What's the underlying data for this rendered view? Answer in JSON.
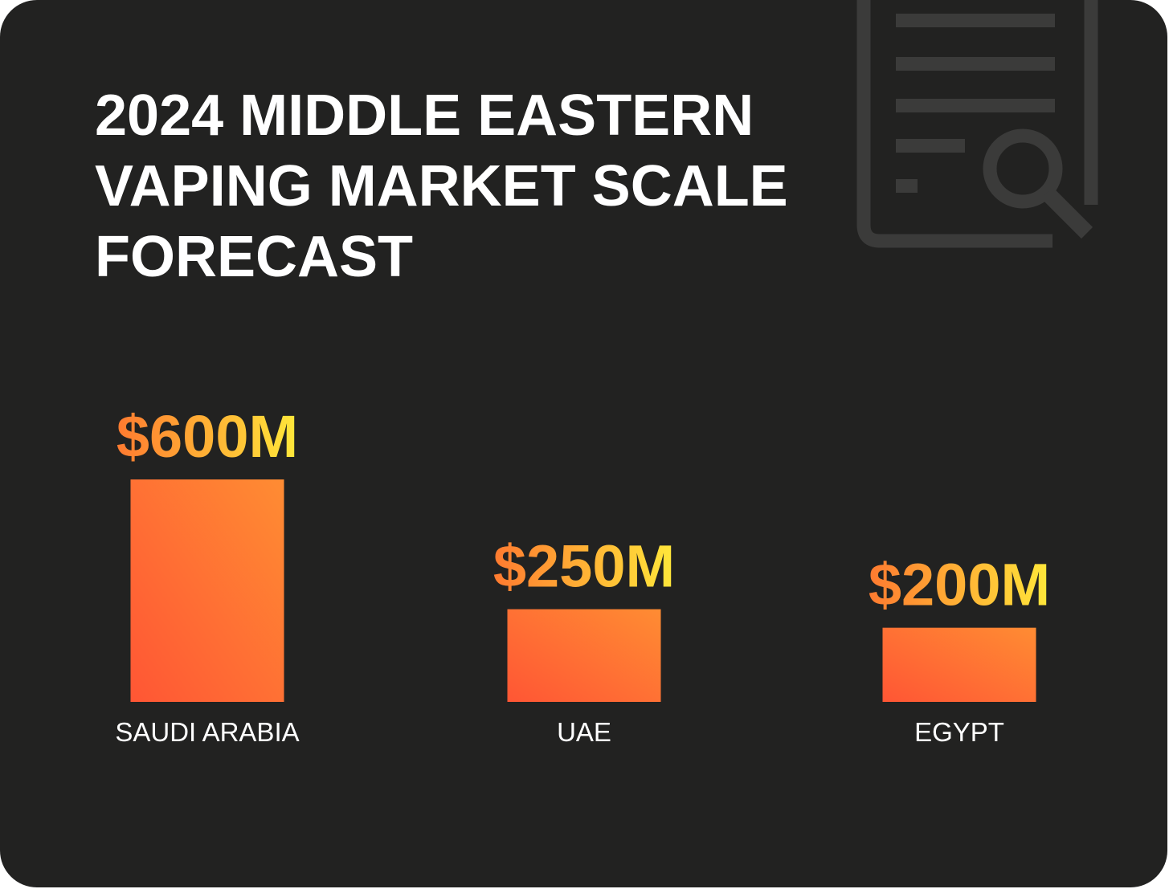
{
  "title": {
    "line1": "2024 MIDDLE EASTERN",
    "line2": "VAPING MARKET SCALE",
    "line3": "FORECAST"
  },
  "icon": "document-search-icon",
  "colors": {
    "background": "#222221",
    "icon": "#3b3b3a",
    "bar_light": "#ff8c33",
    "bar_dark": "#ff5634",
    "label_orange": "#ff7a30",
    "label_yellow": "#ffe83a"
  },
  "chart_data": {
    "type": "bar",
    "title": "2024 MIDDLE EASTERN VAPING MARKET SCALE FORECAST",
    "categories": [
      "SAUDI ARABIA",
      "UAE",
      "EGYPT"
    ],
    "values": [
      600,
      250,
      200
    ],
    "value_labels": [
      "$600M",
      "$250M",
      "$200M"
    ],
    "unit": "$M",
    "xlabel": "",
    "ylabel": "",
    "grid": false,
    "legend": "none"
  }
}
